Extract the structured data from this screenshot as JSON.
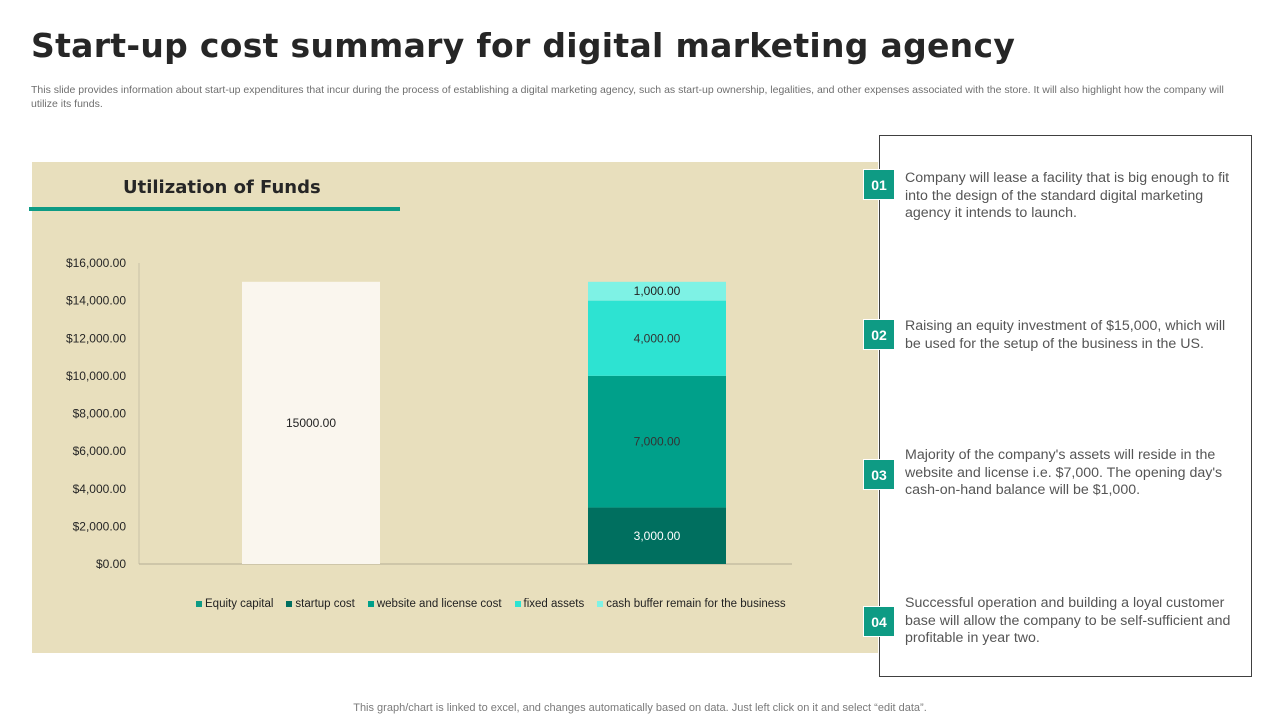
{
  "slide": {
    "title": "Start-up cost summary for digital marketing agency",
    "subtitle": "This slide provides information about start-up expenditures that incur during the process of establishing a digital marketing agency, such as start-up ownership, legalities, and other expenses associated with the store. It will also highlight how the company will utilize its funds.",
    "footer": "This graph/chart is linked to excel, and changes automatically based on data. Just left click on it and select “edit data”."
  },
  "chart_heading": "Utilization of Funds",
  "chart_data": {
    "type": "bar",
    "stacked": true,
    "ylim": [
      0,
      16000
    ],
    "yticks": [
      0,
      2000,
      4000,
      6000,
      8000,
      10000,
      12000,
      14000,
      16000
    ],
    "ytick_labels": [
      "$0.00",
      "$2,000.00",
      "$4,000.00",
      "$6,000.00",
      "$8,000.00",
      "$10,000.00",
      "$12,000.00",
      "$14,000.00",
      "$16,000.00"
    ],
    "grid": false,
    "legend_position": "bottom",
    "series": [
      {
        "name": "Equity capital",
        "color": "#faf6ee",
        "label_color": "#222222",
        "values": [
          15000,
          0
        ],
        "labels": [
          "15000.00",
          ""
        ]
      },
      {
        "name": "startup cost",
        "color": "#006f5f",
        "label_color": "#ffffff",
        "values": [
          0,
          3000
        ],
        "labels": [
          "",
          "3,000.00"
        ]
      },
      {
        "name": "website and license cost",
        "color": "#00a08a",
        "label_color": "#333333",
        "values": [
          0,
          7000
        ],
        "labels": [
          "",
          "7,000.00"
        ]
      },
      {
        "name": "fixed assets",
        "color": "#2de3d2",
        "label_color": "#333333",
        "values": [
          0,
          4000
        ],
        "labels": [
          "",
          "4,000.00"
        ]
      },
      {
        "name": "cash buffer remain for the business",
        "color": "#7ef2e5",
        "label_color": "#222222",
        "values": [
          0,
          1000
        ],
        "labels": [
          "",
          "1,000.00"
        ]
      }
    ],
    "legend_colors": [
      "#0e9b84",
      "#006f5f",
      "#00a08a",
      "#2de3d2",
      "#7ef2e5"
    ]
  },
  "points": [
    {
      "number": "01",
      "text": "Company will lease a facility that is big enough to fit into the design of the standard digital marketing agency it intends to launch."
    },
    {
      "number": "02",
      "text": "Raising an equity investment of $15,000, which will be used for the setup of the business in the US."
    },
    {
      "number": "03",
      "text": "Majority of the company's assets will reside in the website and license i.e. $7,000. The opening day's cash-on-hand balance will be $1,000."
    },
    {
      "number": "04",
      "text": "Successful operation and building a loyal customer base will allow the company to be self-sufficient and profitable in year two."
    }
  ]
}
